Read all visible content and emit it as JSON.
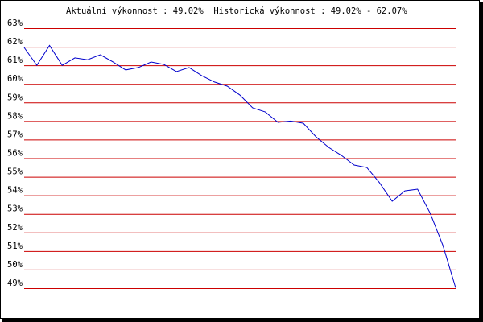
{
  "chart_data": {
    "type": "line",
    "title": "Aktuální výkonnost : 49.02%  Historická výkonnost : 49.02% - 62.07%",
    "values": [
      61.96,
      61.0,
      62.07,
      61.0,
      61.4,
      61.3,
      61.57,
      61.18,
      60.75,
      60.88,
      61.18,
      61.05,
      60.66,
      60.88,
      60.44,
      60.1,
      59.88,
      59.4,
      58.71,
      58.49,
      57.93,
      58.0,
      57.88,
      57.15,
      56.58,
      56.15,
      55.63,
      55.5,
      54.68,
      53.68,
      54.24,
      54.33,
      53.03,
      51.3,
      49.02
    ],
    "color": "#0000cc",
    "ylim": [
      49,
      63
    ],
    "yticks": [
      {
        "value": 49,
        "label": "49%"
      },
      {
        "value": 50,
        "label": "50%"
      },
      {
        "value": 51,
        "label": "51%"
      },
      {
        "value": 52,
        "label": "52%"
      },
      {
        "value": 53,
        "label": "53%"
      },
      {
        "value": 54,
        "label": "54%"
      },
      {
        "value": 55,
        "label": "55%"
      },
      {
        "value": 56,
        "label": "56%"
      },
      {
        "value": 57,
        "label": "57%"
      },
      {
        "value": 58,
        "label": "58%"
      },
      {
        "value": 59,
        "label": "59%"
      },
      {
        "value": 60,
        "label": "60%"
      },
      {
        "value": 61,
        "label": "61%"
      },
      {
        "value": 62,
        "label": "62%"
      },
      {
        "value": 63,
        "label": "63%"
      }
    ],
    "grid": true,
    "grid_color": "#cc0000"
  }
}
